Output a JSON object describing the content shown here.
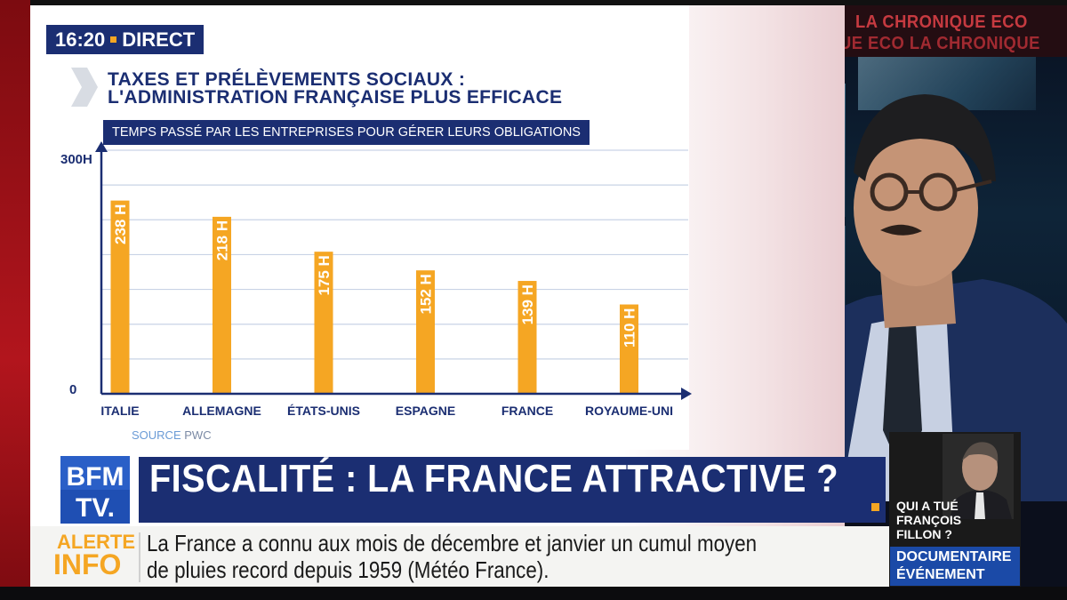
{
  "broadcast": {
    "time": "16:20",
    "live_label": "DIRECT",
    "segment_line1": "LA CHRONIQUE ECO",
    "segment_line2": "UE ECO  LA CHRONIQUE"
  },
  "graphic": {
    "title_line1": "TAXES ET PRÉLÈVEMENTS SOCIAUX :",
    "title_line2": "L'ADMINISTRATION FRANÇAISE PLUS EFFICACE",
    "subtitle": "TEMPS PASSÉ PAR LES ENTREPRISES POUR GÉRER LEURS OBLIGATIONS",
    "source_label": "SOURCE",
    "source_value": "PWC"
  },
  "chart_data": {
    "type": "bar",
    "title": "TEMPS PASSÉ PAR LES ENTREPRISES POUR GÉRER LEURS OBLIGATIONS",
    "categories": [
      "ITALIE",
      "ALLEMAGNE",
      "ÉTATS-UNIS",
      "ESPAGNE",
      "FRANCE",
      "ROYAUME-UNI"
    ],
    "values": [
      238,
      218,
      175,
      152,
      139,
      110
    ],
    "value_labels": [
      "238 H",
      "218 H",
      "175 H",
      "152 H",
      "139 H",
      "110 H"
    ],
    "y_tick_labels": [
      "300H",
      "0"
    ],
    "ylim": [
      0,
      300
    ],
    "bar_color": "#f5a623",
    "grid": true
  },
  "headline": {
    "logo_line1": "BFM",
    "logo_line2": "TV.",
    "text": "FISCALITÉ : LA FRANCE ATTRACTIVE ?"
  },
  "alert": {
    "label_line1": "ALERTE",
    "label_line2": "INFO",
    "text_line1": "La France a connu aux mois de décembre et janvier un cumul moyen",
    "text_line2": "de pluies record depuis 1959 (Météo France)."
  },
  "promo": {
    "question_line1": "QUI A TUÉ",
    "question_line2": "FRANÇOIS",
    "question_line3": "FILLON ?",
    "badge_line1": "DOCUMENTAIRE",
    "badge_line2": "ÉVÉNEMENT"
  },
  "colors": {
    "navy": "#1b2e72",
    "accent": "#f5a623",
    "alert_text": "#1a1a1a"
  }
}
